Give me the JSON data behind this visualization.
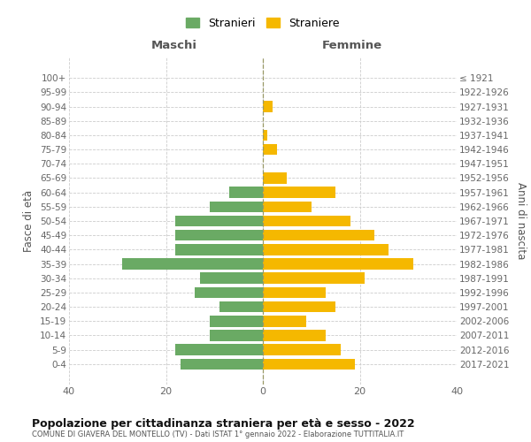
{
  "age_groups": [
    "100+",
    "95-99",
    "90-94",
    "85-89",
    "80-84",
    "75-79",
    "70-74",
    "65-69",
    "60-64",
    "55-59",
    "50-54",
    "45-49",
    "40-44",
    "35-39",
    "30-34",
    "25-29",
    "20-24",
    "15-19",
    "10-14",
    "5-9",
    "0-4"
  ],
  "birth_years": [
    "≤ 1921",
    "1922-1926",
    "1927-1931",
    "1932-1936",
    "1937-1941",
    "1942-1946",
    "1947-1951",
    "1952-1956",
    "1957-1961",
    "1962-1966",
    "1967-1971",
    "1972-1976",
    "1977-1981",
    "1982-1986",
    "1987-1991",
    "1992-1996",
    "1997-2001",
    "2002-2006",
    "2007-2011",
    "2012-2016",
    "2017-2021"
  ],
  "maschi": [
    0,
    0,
    0,
    0,
    0,
    0,
    0,
    0,
    7,
    11,
    18,
    18,
    18,
    29,
    13,
    14,
    9,
    11,
    11,
    18,
    17
  ],
  "femmine": [
    0,
    0,
    2,
    0,
    1,
    3,
    0,
    5,
    15,
    10,
    18,
    23,
    26,
    31,
    21,
    13,
    15,
    9,
    13,
    16,
    19
  ],
  "male_color": "#6aaa64",
  "female_color": "#f5b800",
  "background_color": "#ffffff",
  "grid_color": "#cccccc",
  "title": "Popolazione per cittadinanza straniera per età e sesso - 2022",
  "subtitle": "COMUNE DI GIAVERA DEL MONTELLO (TV) - Dati ISTAT 1° gennaio 2022 - Elaborazione TUTTITALIA.IT",
  "ylabel_left": "Fasce di età",
  "ylabel_right": "Anni di nascita",
  "header_left": "Maschi",
  "header_right": "Femmine",
  "legend_male": "Stranieri",
  "legend_female": "Straniere",
  "xlim": 40
}
